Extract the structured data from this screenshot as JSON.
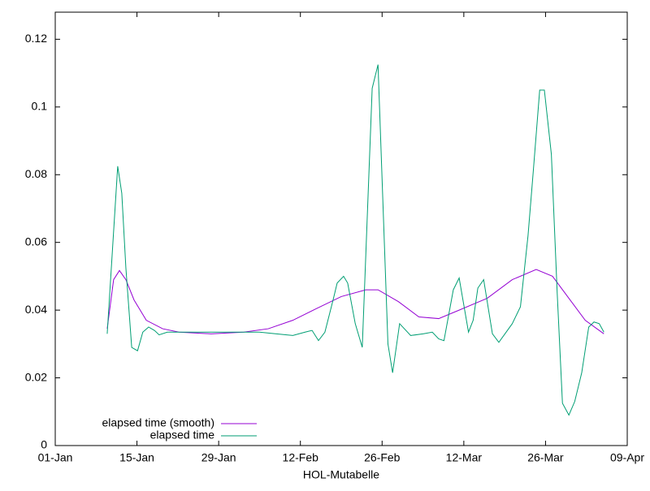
{
  "chart_data": {
    "type": "line",
    "xlabel": "HOL-Mutabelle",
    "xlim": [
      0,
      98
    ],
    "xticks": [
      {
        "value": 0,
        "label": "01-Jan"
      },
      {
        "value": 14,
        "label": "15-Jan"
      },
      {
        "value": 28,
        "label": "29-Jan"
      },
      {
        "value": 42,
        "label": "12-Feb"
      },
      {
        "value": 56,
        "label": "26-Feb"
      },
      {
        "value": 70,
        "label": "12-Mar"
      },
      {
        "value": 84,
        "label": "26-Mar"
      },
      {
        "value": 98,
        "label": "09-Apr"
      }
    ],
    "ylim": [
      0,
      0.128
    ],
    "yticks": [
      0,
      0.02,
      0.04,
      0.06,
      0.08,
      0.1,
      0.12
    ],
    "grid": false,
    "legend": "bottom-left",
    "series": [
      {
        "name": "elapsed time (smooth)",
        "color": "#9400d3",
        "x": [
          8.9,
          10,
          11,
          12.1,
          13.5,
          15.6,
          18.4,
          21.2,
          26.7,
          32.3,
          36.5,
          40.7,
          44.8,
          49,
          53.2,
          55.3,
          58.8,
          62.3,
          65.7,
          69.2,
          74,
          78.3,
          82.4,
          85.2,
          88,
          90.8,
          94
        ],
        "values": [
          0.0345,
          0.049,
          0.0517,
          0.049,
          0.043,
          0.037,
          0.0345,
          0.0335,
          0.033,
          0.0335,
          0.0345,
          0.037,
          0.0405,
          0.044,
          0.046,
          0.046,
          0.0425,
          0.038,
          0.0375,
          0.04,
          0.0435,
          0.049,
          0.052,
          0.05,
          0.0435,
          0.037,
          0.033
        ]
      },
      {
        "name": "elapsed time",
        "color": "#009e73",
        "x": [
          8.9,
          10.7,
          11.4,
          12.1,
          13.1,
          14.1,
          15,
          16,
          17,
          17.8,
          19.2,
          35,
          37.9,
          40.7,
          42.8,
          44,
          45.1,
          46.2,
          47.6,
          48.3,
          49.4,
          50.1,
          51.4,
          52.6,
          54.3,
          55.3,
          57,
          57.8,
          59,
          60.9,
          63,
          64.6,
          65.7,
          66.6,
          68.2,
          69.2,
          70.8,
          71.6,
          72.4,
          73.4,
          74.9,
          76,
          78.3,
          79.7,
          81,
          81.9,
          83,
          83.8,
          85,
          86,
          86.9,
          88,
          89,
          90.2,
          91.4,
          92.3,
          93.2,
          94
        ],
        "values": [
          0.033,
          0.0825,
          0.0745,
          0.0525,
          0.029,
          0.028,
          0.0335,
          0.035,
          0.034,
          0.0327,
          0.0335,
          0.0335,
          0.033,
          0.0325,
          0.0335,
          0.034,
          0.031,
          0.0335,
          0.043,
          0.048,
          0.05,
          0.048,
          0.036,
          0.029,
          0.1055,
          0.1125,
          0.03,
          0.0215,
          0.036,
          0.0325,
          0.033,
          0.0335,
          0.0315,
          0.031,
          0.046,
          0.0495,
          0.0335,
          0.037,
          0.0465,
          0.049,
          0.033,
          0.0305,
          0.036,
          0.041,
          0.062,
          0.081,
          0.105,
          0.105,
          0.086,
          0.045,
          0.0125,
          0.009,
          0.013,
          0.0215,
          0.035,
          0.0365,
          0.036,
          0.0335
        ]
      }
    ]
  }
}
